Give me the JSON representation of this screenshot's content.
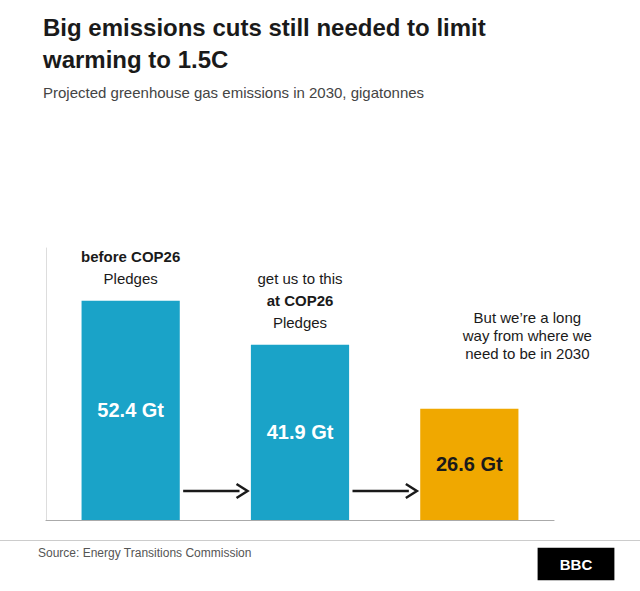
{
  "chart_data": {
    "type": "bar",
    "title": "Big emissions cuts still needed to limit\nwarming to 1.5C",
    "subtitle": "Projected greenhouse gas emissions in 2030, gigatonnes",
    "categories": [
      null,
      null,
      null
    ],
    "values": [
      52.4,
      41.9,
      26.6
    ],
    "value_labels": [
      "52.4 Gt",
      "41.9 Gt",
      "26.6 Gt"
    ],
    "data_labels": true,
    "colors": [
      "#1aa3c8",
      "#1aa3c8",
      "#f0a800"
    ],
    "ylim": [
      0,
      65
    ],
    "tick_labels": false,
    "grid": false,
    "annotations": [
      [
        "before COP26",
        "Pledges"
      ],
      [
        "get us to this",
        "at COP26",
        "Pledges"
      ],
      [
        "But we’re a long",
        "way from where we",
        "need to be in 2030"
      ]
    ],
    "source": "Source: Energy Transitions Commission",
    "badge": "BBC"
  }
}
